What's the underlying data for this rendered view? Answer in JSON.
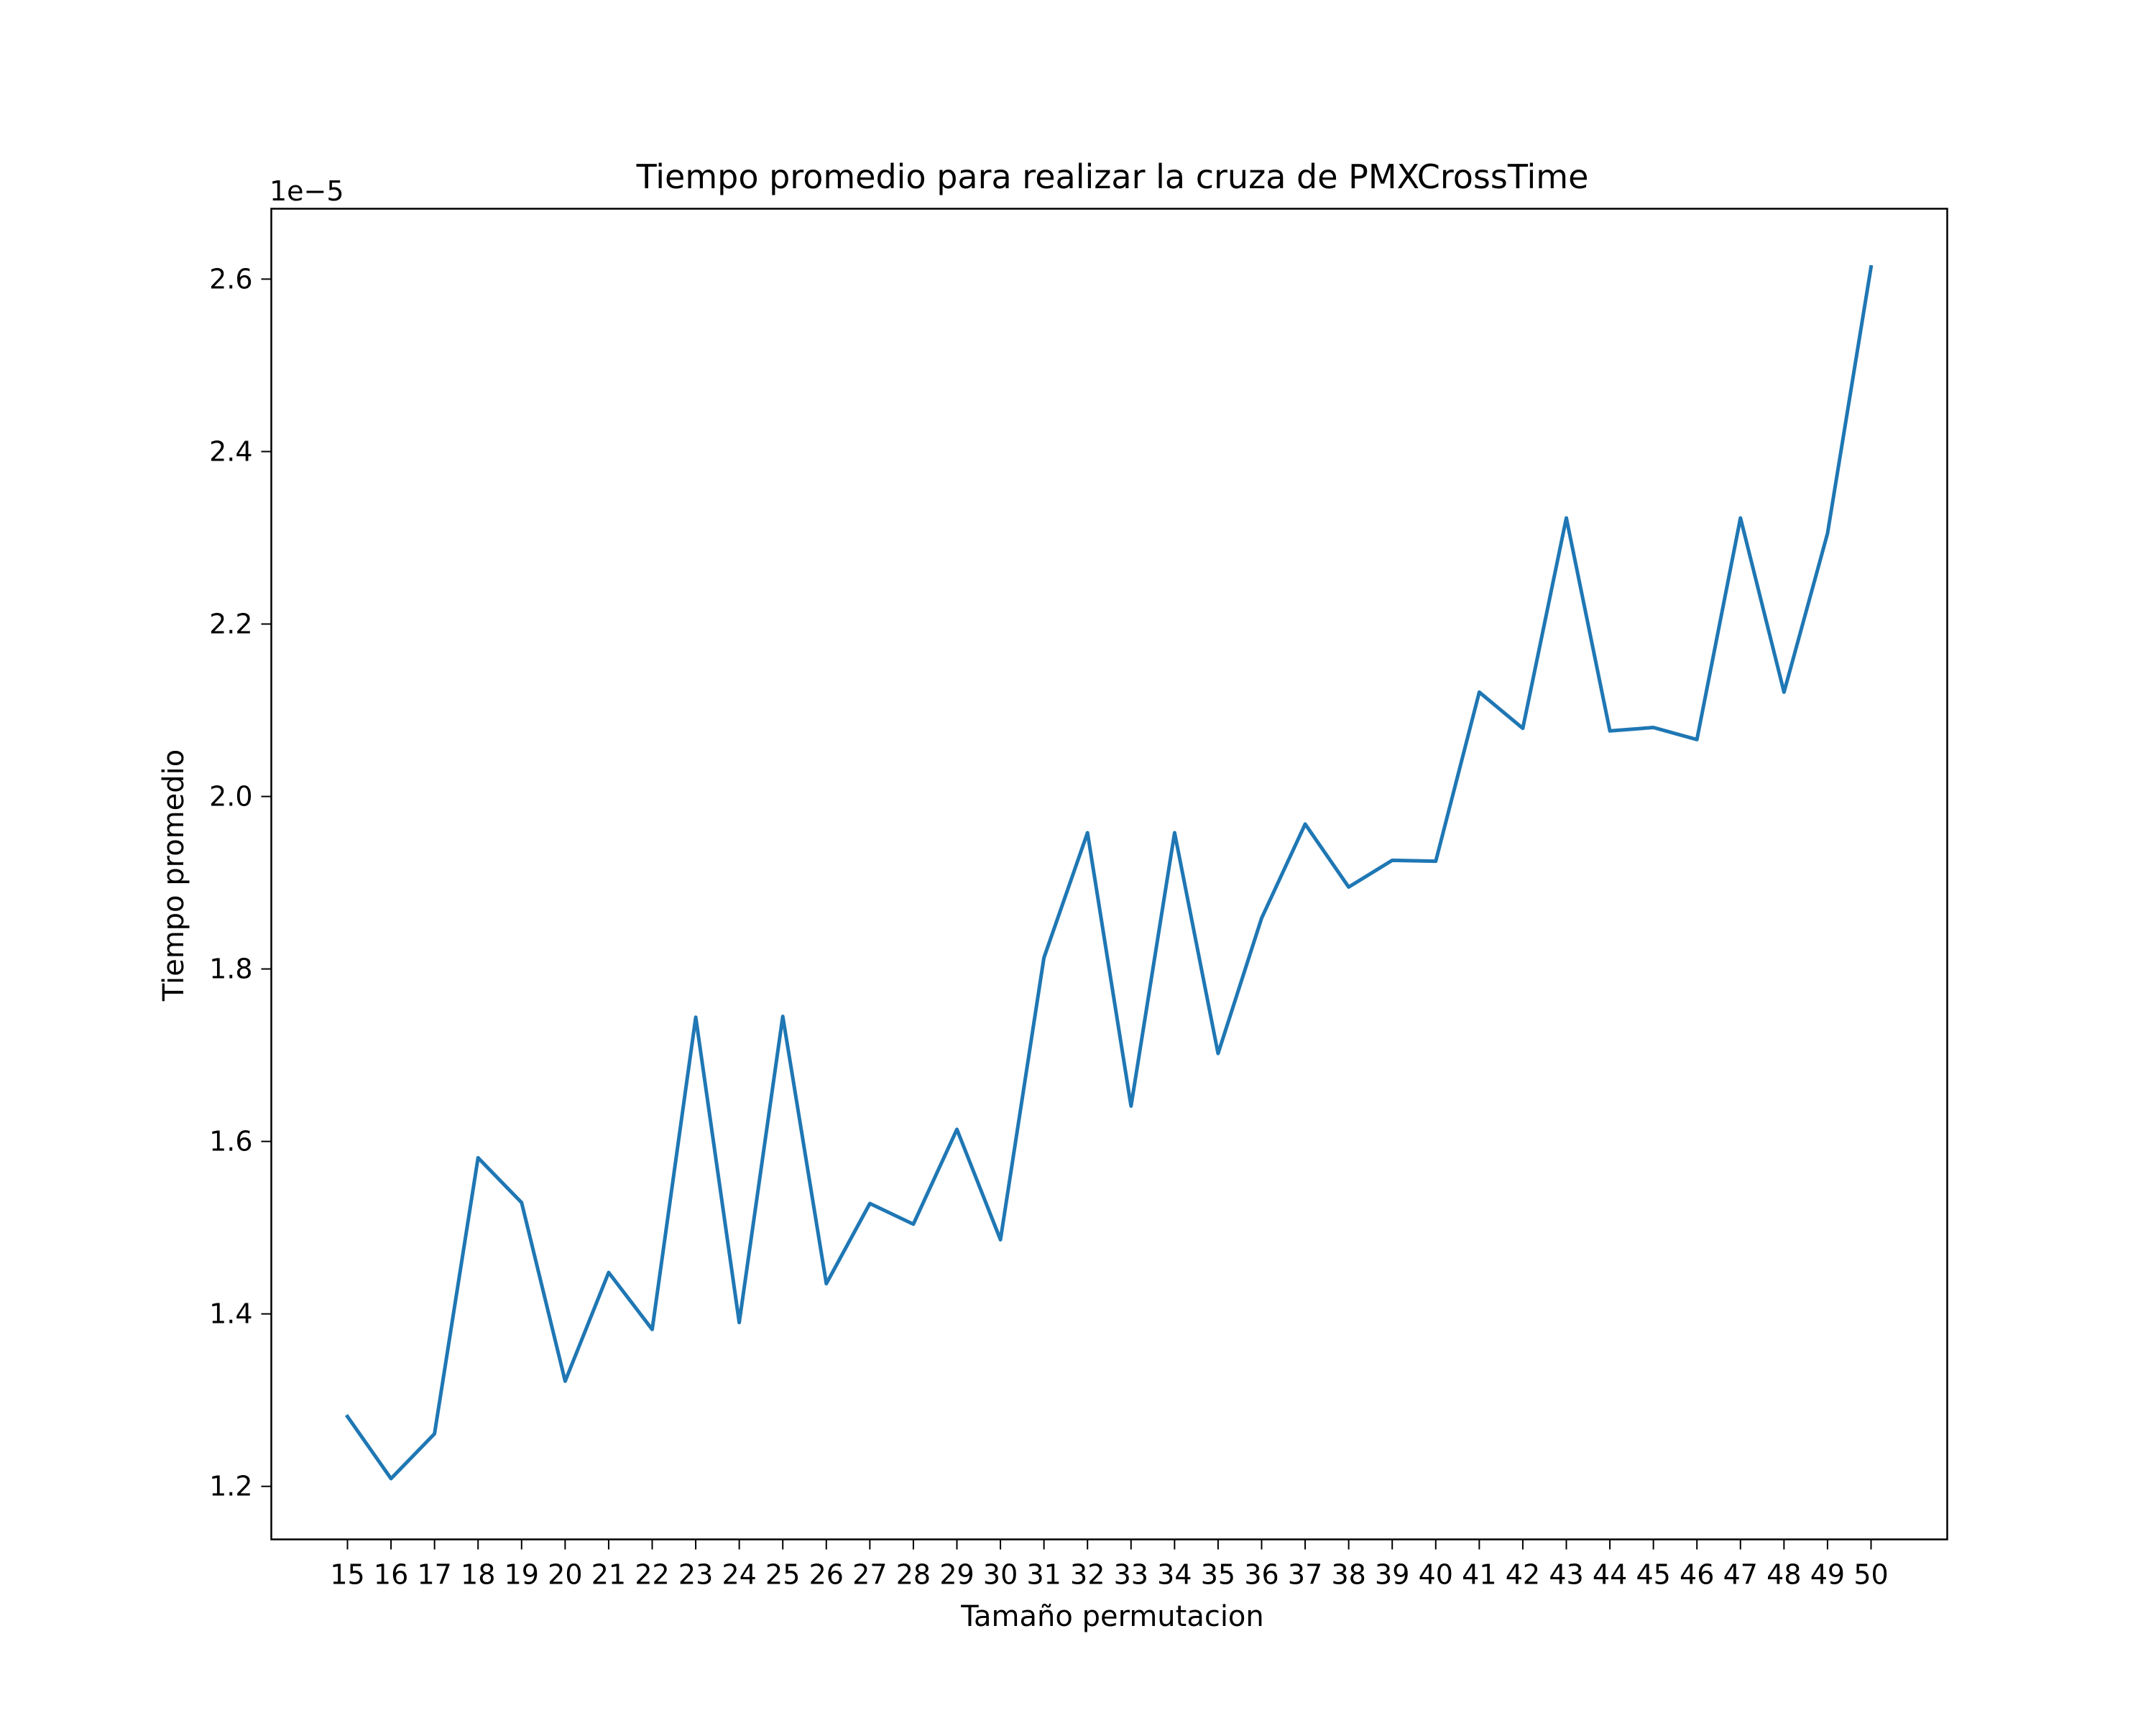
{
  "chart_data": {
    "type": "line",
    "title": "Tiempo promedio para realizar la cruza de PMXCrossTime",
    "xlabel": "Tamaño permutacion",
    "ylabel": "Tiempo promedio",
    "y_offset_label": "1e−5",
    "x": [
      15,
      16,
      17,
      18,
      19,
      20,
      21,
      22,
      23,
      24,
      25,
      26,
      27,
      28,
      29,
      30,
      31,
      32,
      33,
      34,
      35,
      36,
      37,
      38,
      39,
      40,
      41,
      42,
      43,
      44,
      45,
      46,
      47,
      48,
      49,
      50
    ],
    "series": [
      {
        "values": [
          1.281e-05,
          1.209e-05,
          1.261e-05,
          1.581e-05,
          1.529e-05,
          1.322e-05,
          1.448e-05,
          1.382e-05,
          1.744e-05,
          1.39e-05,
          1.745e-05,
          1.435e-05,
          1.528e-05,
          1.504e-05,
          1.614e-05,
          1.486e-05,
          1.813e-05,
          1.958e-05,
          1.641e-05,
          1.958e-05,
          1.702e-05,
          1.859e-05,
          1.968e-05,
          1.895e-05,
          1.926e-05,
          1.925e-05,
          2.121e-05,
          2.079e-05,
          2.323e-05,
          2.076e-05,
          2.08e-05,
          2.066e-05,
          2.323e-05,
          2.121e-05,
          2.305e-05,
          2.614e-05
        ],
        "color": "#1f77b4"
      }
    ],
    "xticks": [
      "15",
      "16",
      "17",
      "18",
      "19",
      "20",
      "21",
      "22",
      "23",
      "24",
      "25",
      "26",
      "27",
      "28",
      "29",
      "30",
      "31",
      "32",
      "33",
      "34",
      "35",
      "36",
      "37",
      "38",
      "39",
      "40",
      "41",
      "42",
      "43",
      "44",
      "45",
      "46",
      "47",
      "48",
      "49",
      "50"
    ],
    "yticks": [
      "1.2",
      "1.4",
      "1.6",
      "1.8",
      "2.0",
      "2.2",
      "2.4",
      "2.6"
    ],
    "ytick_values": [
      1.2e-05,
      1.4e-05,
      1.6e-05,
      1.8e-05,
      2e-05,
      2.2e-05,
      2.4e-05,
      2.6e-05
    ],
    "xlim": [
      13.25,
      51.75
    ],
    "ylim": [
      1.1385e-05,
      2.6816e-05
    ],
    "grid": false,
    "legend": "none"
  }
}
